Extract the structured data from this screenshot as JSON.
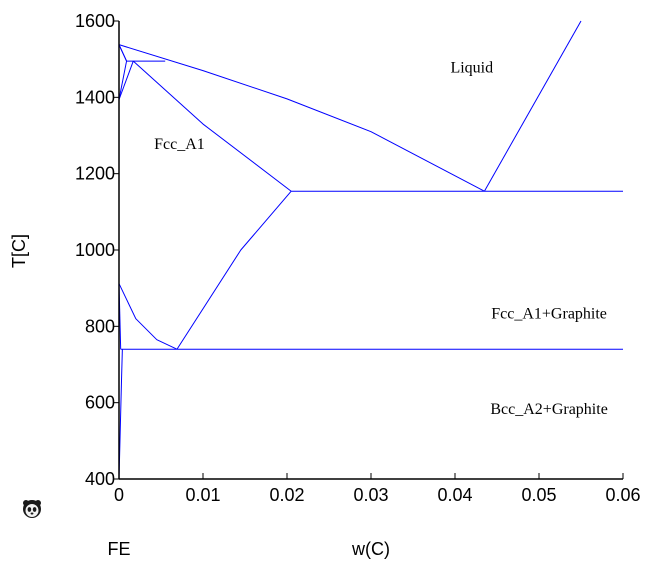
{
  "chart_data": {
    "type": "line",
    "title": "",
    "xlabel": "w(C)",
    "ylabel": "T[C]",
    "xlim": [
      0,
      0.06
    ],
    "ylim": [
      400,
      1600
    ],
    "x_ticks": [
      0,
      0.01,
      0.02,
      0.03,
      0.04,
      0.05,
      0.06
    ],
    "x_tick_labels": [
      "0",
      "0.01",
      "0.02",
      "0.03",
      "0.04",
      "0.05",
      "0.06"
    ],
    "y_ticks": [
      400,
      600,
      800,
      1000,
      1200,
      1400,
      1600
    ],
    "y_tick_labels": [
      "400",
      "600",
      "800",
      "1000",
      "1200",
      "1400",
      "1600"
    ],
    "grid": false,
    "line_color": "#0000ff",
    "component_label": "FE",
    "logo_icon": "panda-logo-icon",
    "region_labels": [
      {
        "text": "Liquid",
        "x": 0.042,
        "y": 1465
      },
      {
        "text": "Fcc_A1",
        "x": 0.0072,
        "y": 1265
      },
      {
        "text": "Fcc_A1+Graphite",
        "x": 0.0512,
        "y": 820
      },
      {
        "text": "Bcc_A2+Graphite",
        "x": 0.0512,
        "y": 570
      }
    ],
    "series": [
      {
        "points": [
          [
            0,
            1538
          ],
          [
            0.0009,
            1495
          ]
        ]
      },
      {
        "points": [
          [
            0,
            1538
          ],
          [
            0.0009,
            1495
          ],
          [
            0.0055,
            1495
          ]
        ]
      },
      {
        "points": [
          [
            0,
            1394
          ],
          [
            0.0009,
            1495
          ]
        ]
      },
      {
        "points": [
          [
            0,
            1394
          ],
          [
            0.0017,
            1495
          ]
        ]
      },
      {
        "points": [
          [
            0,
            1538
          ],
          [
            0.01,
            1470
          ],
          [
            0.02,
            1396
          ],
          [
            0.03,
            1310
          ],
          [
            0.0435,
            1154
          ]
        ]
      },
      {
        "points": [
          [
            0.0017,
            1495
          ],
          [
            0.01,
            1330
          ],
          [
            0.0205,
            1154
          ]
        ]
      },
      {
        "points": [
          [
            0.0205,
            1154
          ],
          [
            0.06,
            1154
          ]
        ]
      },
      {
        "points": [
          [
            0.0435,
            1154
          ],
          [
            0.055,
            1600
          ]
        ]
      },
      {
        "points": [
          [
            0.0205,
            1154
          ],
          [
            0.0145,
            1000
          ],
          [
            0.0069,
            740
          ]
        ]
      },
      {
        "points": [
          [
            0,
            912
          ],
          [
            0.002,
            820
          ],
          [
            0.0045,
            765
          ],
          [
            0.0069,
            740
          ]
        ]
      },
      {
        "points": [
          [
            0.0002,
            740
          ],
          [
            0.06,
            740
          ]
        ]
      },
      {
        "points": [
          [
            0,
            912
          ],
          [
            0.0002,
            740
          ]
        ]
      },
      {
        "points": [
          [
            0,
            400
          ],
          [
            0.0003,
            660
          ],
          [
            0.0004,
            740
          ]
        ]
      }
    ]
  }
}
